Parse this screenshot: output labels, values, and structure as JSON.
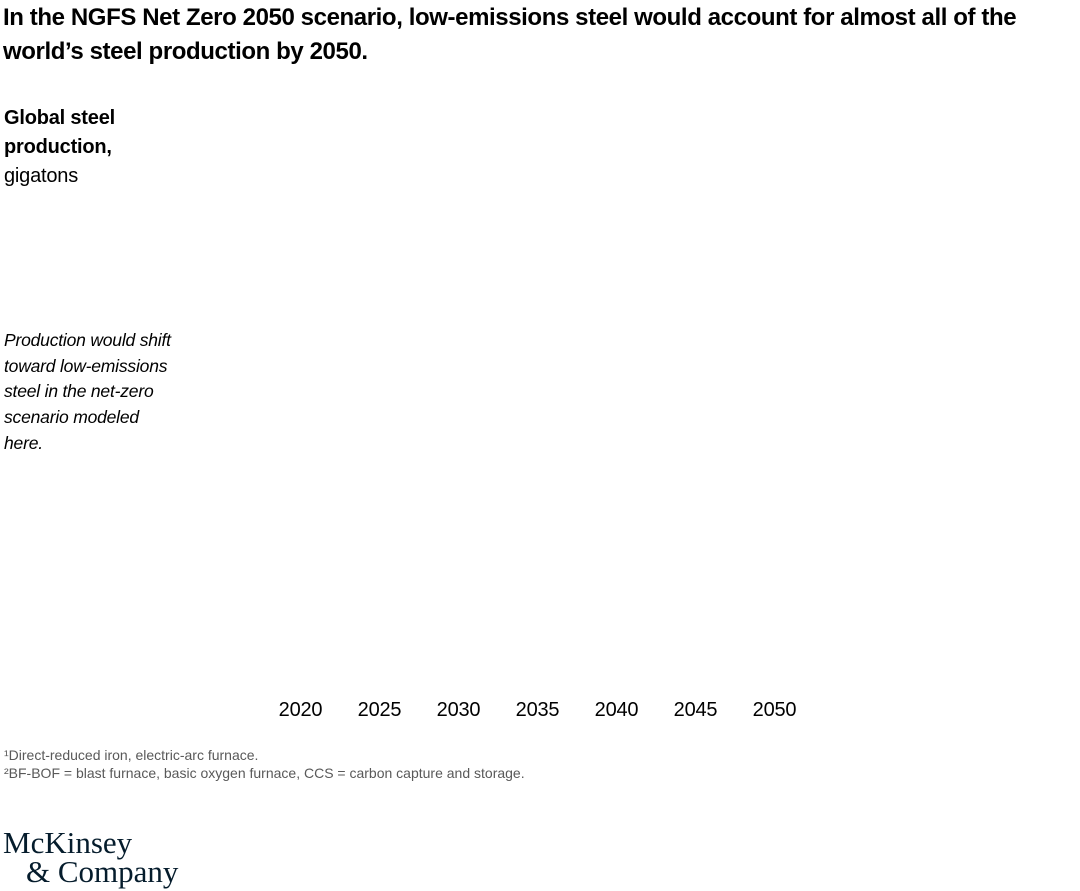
{
  "header": {
    "title": "In the NGFS Net Zero 2050 scenario, low-emissions steel would account for almost all of the world’s steel production by 2050."
  },
  "chart": {
    "y_axis_title_bold": "Global steel production,",
    "y_axis_title_unit": "gigatons",
    "annotation": "Production would shift toward low-emissions steel in the net-zero scenario modeled here.",
    "x_ticks": [
      "2020",
      "2025",
      "2030",
      "2035",
      "2040",
      "2045",
      "2050"
    ]
  },
  "chart_data": {
    "type": "area",
    "title": "Global steel production, gigatons",
    "xlabel": "",
    "ylabel": "Global steel production, gigatons",
    "x_tick_labels": [
      "2020",
      "2025",
      "2030",
      "2035",
      "2040",
      "2045",
      "2050"
    ],
    "x_range": [
      2020,
      2050
    ],
    "series": [],
    "annotations": [
      "Production would shift toward low-emissions steel in the net-zero scenario modeled here."
    ],
    "grid": false,
    "legend": "none",
    "plot_area_rendered_empty": true
  },
  "footnotes": {
    "line1": "¹Direct-reduced iron, electric-arc furnace.",
    "line2": "²BF-BOF = blast furnace, basic oxygen furnace, CCS = carbon capture and storage."
  },
  "logo": {
    "line1": "McKinsey",
    "line2": "& Company"
  },
  "colors": {
    "title": "#000000",
    "axis_label": "#000000",
    "footnote": "#595959",
    "logo": "#051c2c"
  }
}
